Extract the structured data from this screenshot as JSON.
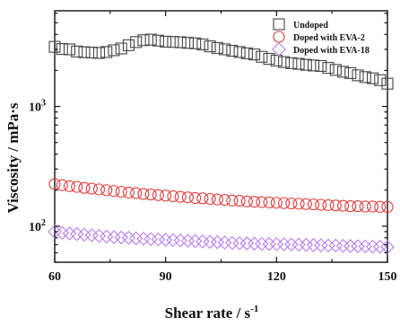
{
  "chart_data": {
    "type": "scatter",
    "xlabel": "Shear rate / s",
    "xlabel_superscript": "-1",
    "ylabel": "Viscosity / mPa·s",
    "xlim": [
      60,
      150
    ],
    "ylim": [
      50,
      6300
    ],
    "yscale": "log",
    "x_ticks": [
      60,
      90,
      120,
      150
    ],
    "y_ticks": [
      {
        "value": 100,
        "base": "10",
        "exp": "2"
      },
      {
        "value": 1000,
        "base": "10",
        "exp": "3"
      }
    ],
    "legend_position": "top-right",
    "grid": false,
    "colors": {
      "axis": "#111111",
      "undoped": "#444444",
      "eva2": "#e23b3b",
      "eva18": "#b77ef0"
    },
    "series": [
      {
        "name": "Undoped",
        "marker": "square",
        "color": "#444444",
        "points": [
          [
            60,
            3150
          ],
          [
            62,
            3020
          ],
          [
            64,
            3000
          ],
          [
            66,
            2880
          ],
          [
            68,
            2840
          ],
          [
            70,
            2820
          ],
          [
            72,
            2800
          ],
          [
            74,
            2850
          ],
          [
            76,
            2950
          ],
          [
            78,
            3050
          ],
          [
            80,
            3250
          ],
          [
            82,
            3450
          ],
          [
            84,
            3580
          ],
          [
            86,
            3620
          ],
          [
            88,
            3550
          ],
          [
            90,
            3480
          ],
          [
            92,
            3460
          ],
          [
            94,
            3440
          ],
          [
            96,
            3400
          ],
          [
            98,
            3370
          ],
          [
            100,
            3300
          ],
          [
            102,
            3180
          ],
          [
            104,
            3080
          ],
          [
            106,
            3000
          ],
          [
            108,
            2920
          ],
          [
            110,
            2850
          ],
          [
            112,
            2780
          ],
          [
            114,
            2720
          ],
          [
            116,
            2600
          ],
          [
            118,
            2500
          ],
          [
            120,
            2420
          ],
          [
            122,
            2350
          ],
          [
            124,
            2300
          ],
          [
            126,
            2270
          ],
          [
            128,
            2230
          ],
          [
            130,
            2200
          ],
          [
            132,
            2180
          ],
          [
            134,
            2100
          ],
          [
            136,
            2020
          ],
          [
            138,
            1950
          ],
          [
            140,
            1900
          ],
          [
            142,
            1820
          ],
          [
            144,
            1760
          ],
          [
            146,
            1720
          ],
          [
            148,
            1660
          ],
          [
            150,
            1550
          ]
        ]
      },
      {
        "name": "Doped with EVA-2",
        "marker": "circle",
        "color": "#e23b3b",
        "points": [
          [
            60,
            225
          ],
          [
            62,
            220
          ],
          [
            64,
            216
          ],
          [
            66,
            213
          ],
          [
            68,
            209
          ],
          [
            70,
            206
          ],
          [
            72,
            203
          ],
          [
            74,
            200
          ],
          [
            76,
            197
          ],
          [
            78,
            194
          ],
          [
            80,
            191
          ],
          [
            82,
            189
          ],
          [
            84,
            186
          ],
          [
            86,
            184
          ],
          [
            88,
            182
          ],
          [
            90,
            180
          ],
          [
            92,
            178
          ],
          [
            94,
            176
          ],
          [
            96,
            174
          ],
          [
            98,
            172
          ],
          [
            100,
            171
          ],
          [
            102,
            169
          ],
          [
            104,
            167
          ],
          [
            106,
            166
          ],
          [
            108,
            164
          ],
          [
            110,
            163
          ],
          [
            112,
            161
          ],
          [
            114,
            160
          ],
          [
            116,
            159
          ],
          [
            118,
            158
          ],
          [
            120,
            157
          ],
          [
            122,
            156
          ],
          [
            124,
            155
          ],
          [
            126,
            154
          ],
          [
            128,
            153
          ],
          [
            130,
            152
          ],
          [
            132,
            151
          ],
          [
            134,
            150
          ],
          [
            136,
            149
          ],
          [
            138,
            148
          ],
          [
            140,
            147
          ],
          [
            142,
            147
          ],
          [
            144,
            146
          ],
          [
            146,
            146
          ],
          [
            148,
            145
          ],
          [
            150,
            145
          ]
        ]
      },
      {
        "name": "Doped with EVA-18",
        "marker": "diamond",
        "color": "#b77ef0",
        "points": [
          [
            60,
            90
          ],
          [
            62,
            88
          ],
          [
            64,
            87
          ],
          [
            66,
            86
          ],
          [
            68,
            85
          ],
          [
            70,
            84
          ],
          [
            72,
            83
          ],
          [
            74,
            82
          ],
          [
            76,
            81
          ],
          [
            78,
            80.5
          ],
          [
            80,
            80
          ],
          [
            82,
            79
          ],
          [
            84,
            78.5
          ],
          [
            86,
            78
          ],
          [
            88,
            77.5
          ],
          [
            90,
            77
          ],
          [
            92,
            76.5
          ],
          [
            94,
            76
          ],
          [
            96,
            75.5
          ],
          [
            98,
            75
          ],
          [
            100,
            74.5
          ],
          [
            102,
            74
          ],
          [
            104,
            73.5
          ],
          [
            106,
            73
          ],
          [
            108,
            72.5
          ],
          [
            110,
            72
          ],
          [
            112,
            71.8
          ],
          [
            114,
            71.5
          ],
          [
            116,
            71.2
          ],
          [
            118,
            71
          ],
          [
            120,
            70.8
          ],
          [
            122,
            70.5
          ],
          [
            124,
            70.3
          ],
          [
            126,
            70
          ],
          [
            128,
            69.8
          ],
          [
            130,
            69.5
          ],
          [
            132,
            69.3
          ],
          [
            134,
            69
          ],
          [
            136,
            68.8
          ],
          [
            138,
            68.5
          ],
          [
            140,
            68.3
          ],
          [
            142,
            68
          ],
          [
            144,
            67.8
          ],
          [
            146,
            67.5
          ],
          [
            148,
            67.3
          ],
          [
            150,
            67
          ]
        ]
      }
    ]
  }
}
